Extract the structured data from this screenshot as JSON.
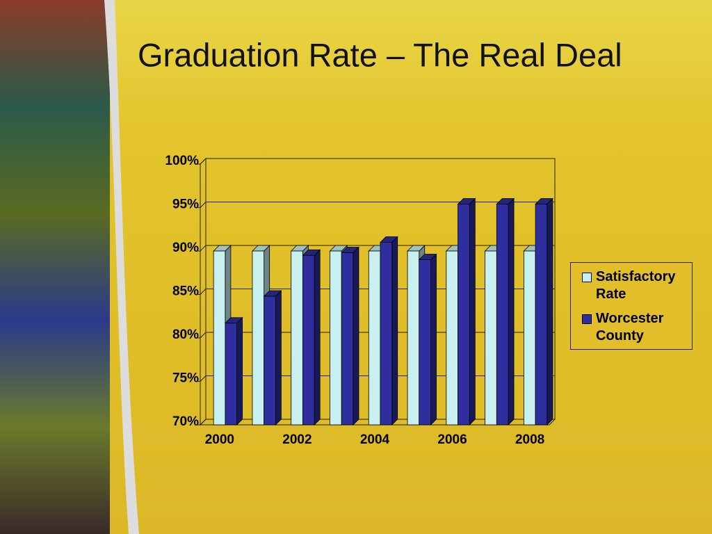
{
  "chart_data": {
    "type": "bar",
    "title": "Graduation Rate – The Real Deal",
    "categories": [
      "2000",
      null,
      "2002",
      null,
      "2004",
      null,
      "2006",
      null,
      "2008"
    ],
    "series": [
      {
        "name": "Satisfactory Rate",
        "color": "#c9f0f0",
        "values": [
          90,
          90,
          90,
          90,
          90,
          90,
          90,
          90,
          90
        ]
      },
      {
        "name": "Worcester County",
        "color": "#2e2e9e",
        "values": [
          81.7,
          84.8,
          89.5,
          89.8,
          91.0,
          89.0,
          95.4,
          95.4,
          95.4
        ]
      }
    ],
    "ylim": [
      70,
      100
    ],
    "yticks": [
      {
        "value": 70,
        "label": "70%"
      },
      {
        "value": 75,
        "label": "75%"
      },
      {
        "value": 80,
        "label": "80%"
      },
      {
        "value": 85,
        "label": "85%"
      },
      {
        "value": 90,
        "label": "90%"
      },
      {
        "value": 95,
        "label": "95%"
      },
      {
        "value": 100,
        "label": "100%"
      }
    ],
    "grid": true,
    "legend": "right"
  }
}
